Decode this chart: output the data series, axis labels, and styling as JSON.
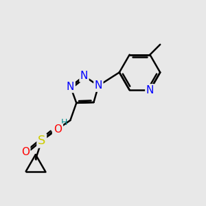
{
  "background_color": "#e8e8e8",
  "bond_color": "#000000",
  "bond_width": 1.8,
  "atoms": {
    "N_blue": "#0000ff",
    "O_red": "#ff0000",
    "S_yellow": "#cccc00",
    "C_black": "#000000",
    "H_teal": "#008b8b"
  },
  "font_size_atom": 11,
  "font_size_h": 9,
  "xlim": [
    0,
    10
  ],
  "ylim": [
    0,
    10
  ]
}
